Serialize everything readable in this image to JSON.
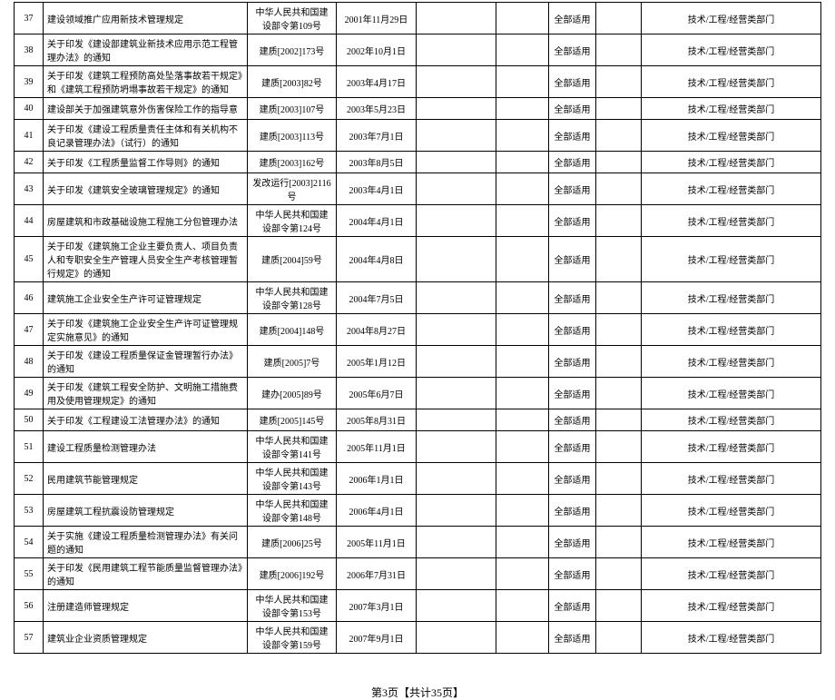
{
  "table": {
    "columns": {
      "idx_width": 32,
      "title_width": 225,
      "docnum_width": 98,
      "date_width": 88,
      "col_e_width": 88,
      "col_f_width": 58,
      "col_g_width": 52,
      "col_h_width": 50
    },
    "border_color": "#000000",
    "font_size": 10,
    "rows": [
      {
        "idx": "37",
        "title": "建设领域推广应用新技术管理规定",
        "docnum": "中华人民共和国建设部令第109号",
        "date": "2001年11月29日",
        "e": "",
        "f": "",
        "scope": "全部适用",
        "h": "",
        "dept": "技术/工程/经营类部门"
      },
      {
        "idx": "38",
        "title": "关于印发《建设部建筑业新技术应用示范工程管理办法》的通知",
        "docnum": "建质[2002]173号",
        "date": "2002年10月1日",
        "e": "",
        "f": "",
        "scope": "全部适用",
        "h": "",
        "dept": "技术/工程/经营类部门"
      },
      {
        "idx": "39",
        "title": "关于印发《建筑工程预防高处坠落事故若干规定》和《建筑工程预防坍塌事故若干规定》的通知",
        "docnum": "建质[2003]82号",
        "date": "2003年4月17日",
        "e": "",
        "f": "",
        "scope": "全部适用",
        "h": "",
        "dept": "技术/工程/经营类部门"
      },
      {
        "idx": "40",
        "title": "建设部关于加强建筑意外伤害保险工作的指导意",
        "docnum": "建质[2003]107号",
        "date": "2003年5月23日",
        "e": "",
        "f": "",
        "scope": "全部适用",
        "h": "",
        "dept": "技术/工程/经营类部门"
      },
      {
        "idx": "41",
        "title": "关于印发《建设工程质量责任主体和有关机构不良记录管理办法》（试行）的通知",
        "docnum": "建质[2003]113号",
        "date": "2003年7月1日",
        "e": "",
        "f": "",
        "scope": "全部适用",
        "h": "",
        "dept": "技术/工程/经营类部门"
      },
      {
        "idx": "42",
        "title": "关于印发《工程质量监督工作导则》的通知",
        "docnum": "建质[2003]162号",
        "date": "2003年8月5日",
        "e": "",
        "f": "",
        "scope": "全部适用",
        "h": "",
        "dept": "技术/工程/经营类部门"
      },
      {
        "idx": "43",
        "title": "关于印发《建筑安全玻璃管理规定》的通知",
        "docnum": "发改运行[2003]2116号",
        "date": "2003年4月1日",
        "e": "",
        "f": "",
        "scope": "全部适用",
        "h": "",
        "dept": "技术/工程/经营类部门"
      },
      {
        "idx": "44",
        "title": "房屋建筑和市政基础设施工程施工分包管理办法",
        "docnum": "中华人民共和国建设部令第124号",
        "date": "2004年4月1日",
        "e": "",
        "f": "",
        "scope": "全部适用",
        "h": "",
        "dept": "技术/工程/经营类部门"
      },
      {
        "idx": "45",
        "title": "关于印发《建筑施工企业主要负责人、项目负责人和专职安全生产管理人员安全生产考核管理暂行规定》的通知",
        "docnum": "建质[2004]59号",
        "date": "2004年4月8日",
        "e": "",
        "f": "",
        "scope": "全部适用",
        "h": "",
        "dept": "技术/工程/经营类部门"
      },
      {
        "idx": "46",
        "title": "建筑施工企业安全生产许可证管理规定",
        "docnum": "中华人民共和国建设部令第128号",
        "date": "2004年7月5日",
        "e": "",
        "f": "",
        "scope": "全部适用",
        "h": "",
        "dept": "技术/工程/经营类部门"
      },
      {
        "idx": "47",
        "title": "关于印发《建筑施工企业安全生产许可证管理规定实施意见》的通知",
        "docnum": "建质[2004]148号",
        "date": "2004年8月27日",
        "e": "",
        "f": "",
        "scope": "全部适用",
        "h": "",
        "dept": "技术/工程/经营类部门"
      },
      {
        "idx": "48",
        "title": "关于印发《建设工程质量保证金管理暂行办法》的通知",
        "docnum": "建质[2005]7号",
        "date": "2005年1月12日",
        "e": "",
        "f": "",
        "scope": "全部适用",
        "h": "",
        "dept": "技术/工程/经营类部门"
      },
      {
        "idx": "49",
        "title": "关于印发《建筑工程安全防护、文明施工措施费用及使用管理规定》的通知",
        "docnum": "建办[2005]89号",
        "date": "2005年6月7日",
        "e": "",
        "f": "",
        "scope": "全部适用",
        "h": "",
        "dept": "技术/工程/经营类部门"
      },
      {
        "idx": "50",
        "title": "关于印发《工程建设工法管理办法》的通知",
        "docnum": "建质[2005]145号",
        "date": "2005年8月31日",
        "e": "",
        "f": "",
        "scope": "全部适用",
        "h": "",
        "dept": "技术/工程/经营类部门"
      },
      {
        "idx": "51",
        "title": "建设工程质量检测管理办法",
        "docnum": "中华人民共和国建设部令第141号",
        "date": "2005年11月1日",
        "e": "",
        "f": "",
        "scope": "全部适用",
        "h": "",
        "dept": "技术/工程/经营类部门"
      },
      {
        "idx": "52",
        "title": "民用建筑节能管理规定",
        "docnum": "中华人民共和国建设部令第143号",
        "date": "2006年1月1日",
        "e": "",
        "f": "",
        "scope": "全部适用",
        "h": "",
        "dept": "技术/工程/经营类部门"
      },
      {
        "idx": "53",
        "title": "房屋建筑工程抗震设防管理规定",
        "docnum": "中华人民共和国建设部令第148号",
        "date": "2006年4月1日",
        "e": "",
        "f": "",
        "scope": "全部适用",
        "h": "",
        "dept": "技术/工程/经营类部门"
      },
      {
        "idx": "54",
        "title": "关于实施《建设工程质量检测管理办法》有关问题的通知",
        "docnum": "建质[2006]25号",
        "date": "2005年11月1日",
        "e": "",
        "f": "",
        "scope": "全部适用",
        "h": "",
        "dept": "技术/工程/经营类部门"
      },
      {
        "idx": "55",
        "title": "关于印发《民用建筑工程节能质量监督管理办法》的通知",
        "docnum": "建质[2006]192号",
        "date": "2006年7月31日",
        "e": "",
        "f": "",
        "scope": "全部适用",
        "h": "",
        "dept": "技术/工程/经营类部门"
      },
      {
        "idx": "56",
        "title": "注册建造师管理规定",
        "docnum": "中华人民共和国建设部令第153号",
        "date": "2007年3月1日",
        "e": "",
        "f": "",
        "scope": "全部适用",
        "h": "",
        "dept": "技术/工程/经营类部门"
      },
      {
        "idx": "57",
        "title": "建筑业企业资质管理规定",
        "docnum": "中华人民共和国建设部令第159号",
        "date": "2007年9月1日",
        "e": "",
        "f": "",
        "scope": "全部适用",
        "h": "",
        "dept": "技术/工程/经营类部门"
      }
    ]
  },
  "footer": {
    "text": "第3页【共计35页】",
    "font_size": 12
  }
}
